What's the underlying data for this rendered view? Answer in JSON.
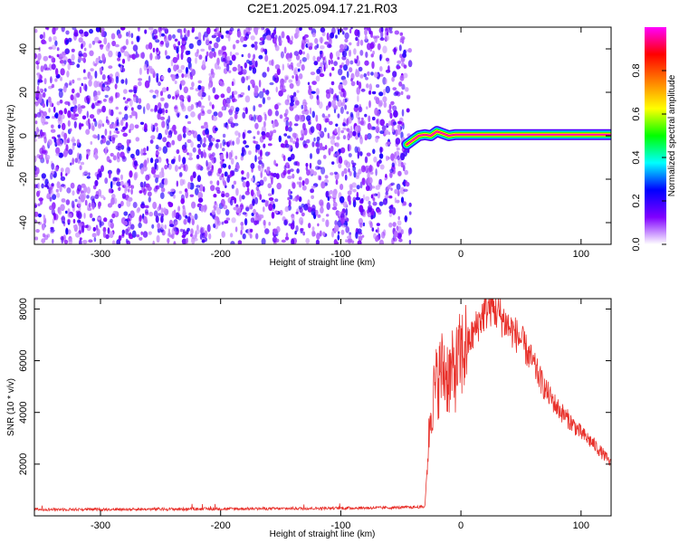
{
  "title": "C2E1.2025.094.17.21.R03",
  "chart_data": [
    {
      "type": "heatmap",
      "xlabel": "Height of straight line (km)",
      "ylabel": "Frequency (Hz)",
      "xlim": [
        -355,
        125
      ],
      "ylim": [
        -50,
        50
      ],
      "x_ticks": [
        -300,
        -200,
        -100,
        0,
        100
      ],
      "x_tick_labels": [
        "-300",
        "-200",
        "-100",
        "0",
        "100"
      ],
      "y_ticks": [
        -40,
        -20,
        0,
        20,
        40
      ],
      "y_tick_labels": [
        "-40",
        "-20",
        "0",
        "20",
        "40"
      ],
      "noise_region": {
        "x_from": -355,
        "x_to": -42,
        "freq_from": -50,
        "freq_to": 50,
        "amplitude": 0.15
      },
      "signal_trace": {
        "x": [
          -45,
          -40,
          -35,
          -30,
          -25,
          -20,
          -15,
          -10,
          -5,
          0,
          10,
          20,
          50,
          100,
          125
        ],
        "freq": [
          -4,
          -2,
          0,
          0.5,
          0,
          2,
          1,
          0,
          0.5,
          0.5,
          0.5,
          0.5,
          0.5,
          0.5,
          0.5
        ],
        "amplitude": [
          0.5,
          0.6,
          0.7,
          0.8,
          0.9,
          0.9,
          0.95,
          0.95,
          1.0,
          1.0,
          1.0,
          1.0,
          1.0,
          1.0,
          1.0
        ]
      },
      "colorbar": {
        "label": "Normalized spectral amplitude",
        "range": [
          0,
          1
        ],
        "ticks": [
          0.0,
          0.2,
          0.4,
          0.6,
          0.8
        ],
        "tick_labels": [
          "0.0",
          "0.2",
          "0.4",
          "0.6",
          "0.8"
        ],
        "colors": [
          "#ffffff",
          "#8000ff",
          "#0000ff",
          "#00ffff",
          "#00ff00",
          "#ffff00",
          "#ff8000",
          "#ff0000",
          "#ff00ff"
        ]
      }
    },
    {
      "type": "line",
      "xlabel": "Height of straight line (km)",
      "ylabel": "SNR (10 * v/v)",
      "xlim": [
        -355,
        125
      ],
      "ylim": [
        0,
        8400
      ],
      "x_ticks": [
        -300,
        -200,
        -100,
        0,
        100
      ],
      "x_tick_labels": [
        "-300",
        "-200",
        "-100",
        "0",
        "100"
      ],
      "y_ticks": [
        2000,
        4000,
        6000,
        8000
      ],
      "y_tick_labels": [
        "2000",
        "4000",
        "6000",
        "8000"
      ],
      "series": [
        {
          "color": "#e8302a",
          "x": [
            -355,
            -300,
            -250,
            -200,
            -150,
            -100,
            -50,
            -30,
            -27,
            -25,
            -20,
            -15,
            -10,
            -5,
            0,
            5,
            10,
            15,
            20,
            25,
            30,
            35,
            40,
            50,
            60,
            70,
            80,
            90,
            100,
            110,
            120,
            125
          ],
          "y": [
            250,
            250,
            260,
            270,
            280,
            300,
            320,
            350,
            2800,
            4200,
            5200,
            5700,
            5400,
            5600,
            6200,
            6600,
            7000,
            7500,
            7900,
            8100,
            7900,
            7600,
            7300,
            6800,
            5900,
            4900,
            4200,
            3700,
            3200,
            2800,
            2300,
            2000
          ]
        }
      ]
    }
  ]
}
